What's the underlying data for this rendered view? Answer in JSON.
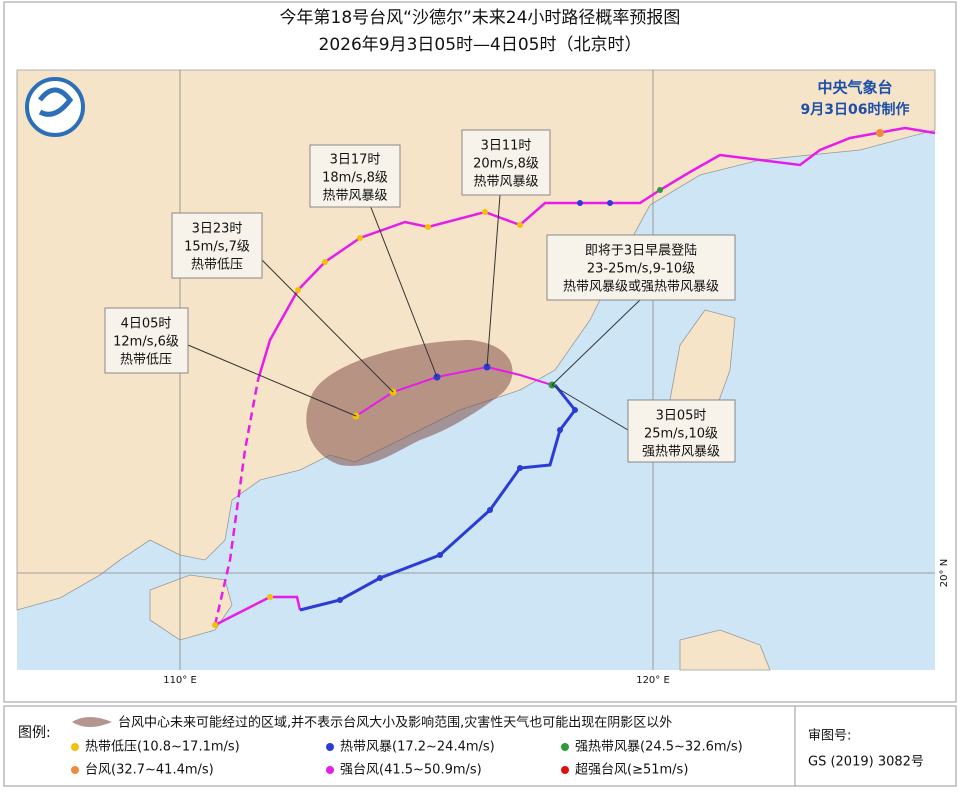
{
  "header": {
    "title": "今年第18号台风“沙德尔”未来24小时路径概率预报图",
    "subtitle": "2026年9月3日05时—4日05时（北京时）"
  },
  "agency": {
    "name": "中央气象台",
    "made": "9月3日06时制作"
  },
  "map": {
    "grid_labels": [
      "110° E",
      "120° E",
      "20° N"
    ],
    "callouts": [
      {
        "lines": [
          "3日17时",
          "18m/s,8级",
          "热带风暴级"
        ]
      },
      {
        "lines": [
          "3日11时",
          "20m/s,8级",
          "热带风暴级"
        ]
      },
      {
        "lines": [
          "3日23时",
          "15m/s,7级",
          "热带低压"
        ]
      },
      {
        "lines": [
          "4日05时",
          "12m/s,6级",
          "热带低压"
        ]
      },
      {
        "lines": [
          "即将于3日早晨登陆",
          "23-25m/s,9-10级",
          "热带风暴级或强热带风暴级"
        ]
      },
      {
        "lines": [
          "3日05时",
          "25m/s,10级",
          "强热带风暴级"
        ]
      }
    ]
  },
  "legend": {
    "title": "图例:",
    "area": "台风中心未来可能经过的区域,并不表示台风大小及影响范围,灾害性天气也可能出现在阴影区以外",
    "items": [
      {
        "label": "热带低压(10.8~17.1m/s)",
        "color": "#f2c200"
      },
      {
        "label": "热带风暴(17.2~24.4m/s)",
        "color": "#2a3bd6"
      },
      {
        "label": "强热带风暴(24.5~32.6m/s)",
        "color": "#2e9a3a"
      },
      {
        "label": "台风(32.7~41.4m/s)",
        "color": "#f08a3c"
      },
      {
        "label": "强台风(41.5~50.9m/s)",
        "color": "#e81ce8"
      },
      {
        "label": "超强台风(≥51m/s)",
        "color": "#e01010"
      }
    ]
  },
  "approval": {
    "label": "审图号:",
    "number": "GS (2019) 3082号"
  }
}
